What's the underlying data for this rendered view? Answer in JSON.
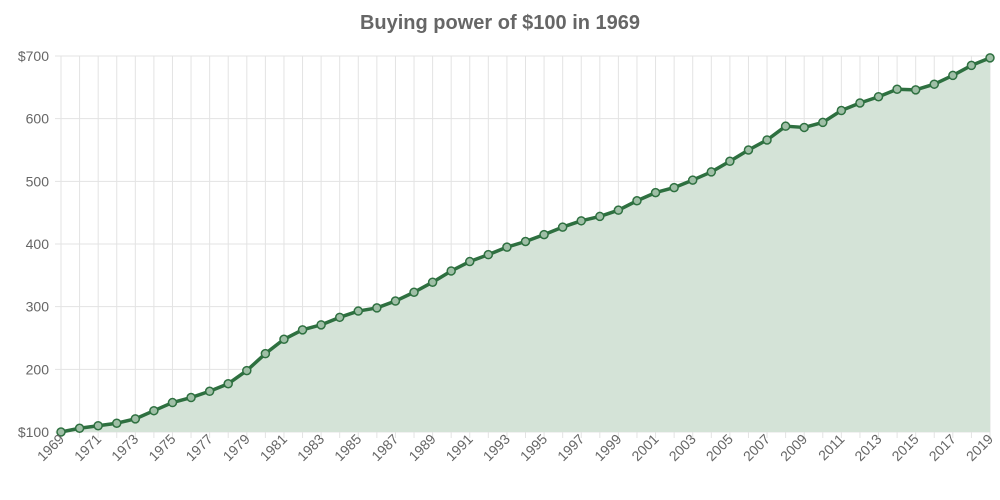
{
  "chart_data": {
    "type": "area",
    "title": "Buying power of $100 in 1969",
    "xlabel": "",
    "ylabel": "",
    "ylim": [
      100,
      700
    ],
    "yticks": [
      100,
      200,
      300,
      400,
      500,
      600,
      700
    ],
    "ytick_labels": [
      "$100",
      "200",
      "300",
      "400",
      "500",
      "600",
      "$700"
    ],
    "grid": true,
    "legend": "none",
    "line_color": "#2e7040",
    "fill_color": "#d4e3d7",
    "x": [
      1969,
      1970,
      1971,
      1972,
      1973,
      1974,
      1975,
      1976,
      1977,
      1978,
      1979,
      1980,
      1981,
      1982,
      1983,
      1984,
      1985,
      1986,
      1987,
      1988,
      1989,
      1990,
      1991,
      1992,
      1993,
      1994,
      1995,
      1996,
      1997,
      1998,
      1999,
      2000,
      2001,
      2002,
      2003,
      2004,
      2005,
      2006,
      2007,
      2008,
      2009,
      2010,
      2011,
      2012,
      2013,
      2014,
      2015,
      2016,
      2017,
      2018,
      2019
    ],
    "xtick_labels": [
      "1969",
      "1971",
      "1973",
      "1975",
      "1977",
      "1979",
      "1981",
      "1983",
      "1985",
      "1987",
      "1989",
      "1991",
      "1993",
      "1995",
      "1997",
      "1999",
      "2001",
      "2003",
      "2005",
      "2007",
      "2009",
      "2011",
      "2013",
      "2015",
      "2017",
      "2019"
    ],
    "series": [
      {
        "values": [
          100,
          106,
          110,
          114,
          121,
          134,
          147,
          155,
          165,
          177,
          198,
          225,
          248,
          263,
          271,
          283,
          293,
          298,
          309,
          323,
          339,
          357,
          372,
          383,
          395,
          404,
          415,
          427,
          437,
          444,
          454,
          469,
          482,
          490,
          502,
          515,
          532,
          550,
          566,
          588,
          586,
          594,
          613,
          625,
          635,
          647,
          646,
          655,
          669,
          685,
          697
        ]
      }
    ]
  }
}
